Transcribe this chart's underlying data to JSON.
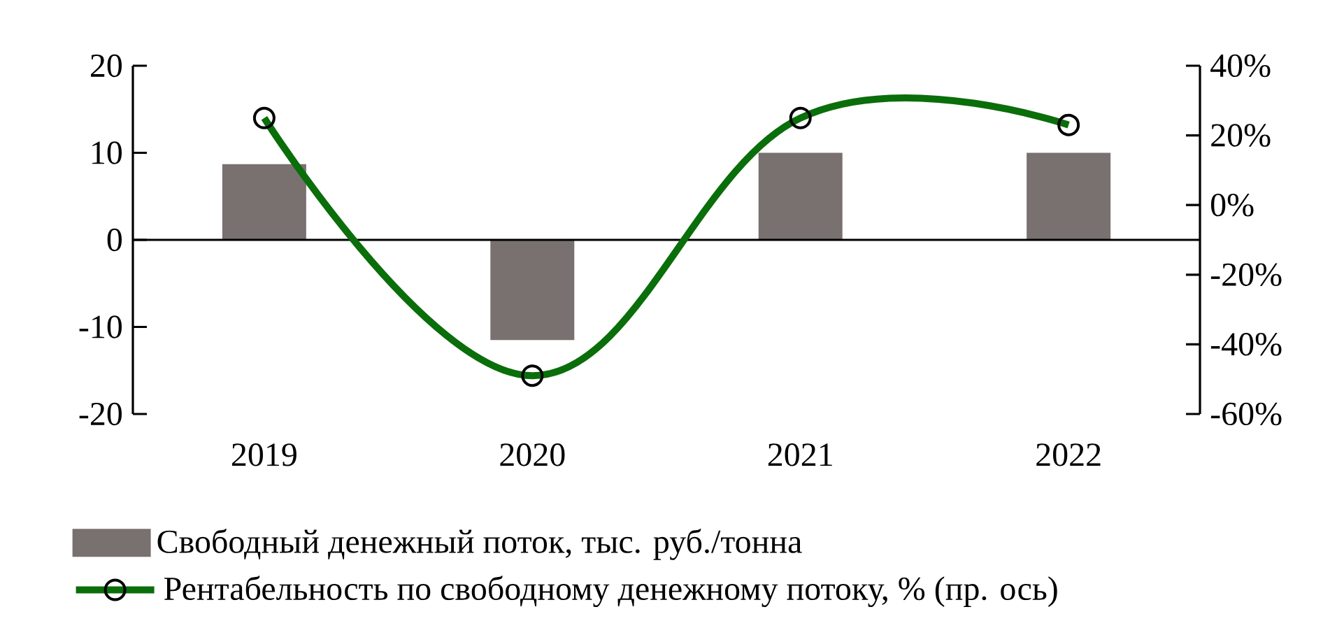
{
  "chart_data": {
    "type": "bar",
    "categories": [
      "2019",
      "2020",
      "2021",
      "2022"
    ],
    "series": [
      {
        "name": "Свободный  денежный  поток,  тыс. руб./тонна",
        "color": "#787170",
        "values": [
          8.7,
          -11.5,
          10,
          10
        ]
      },
      {
        "name": "Рентабельность  по свободному денежному  потоку, % (пр. ось)",
        "type": "line",
        "axis": "y2",
        "color": "#0a6e0a",
        "values": [
          25,
          -49,
          25,
          23
        ],
        "marker": "circle",
        "line_style": "solid"
      }
    ],
    "ylim": [
      -20,
      20
    ],
    "yticks": [
      -20,
      -10,
      0,
      10,
      20
    ],
    "y2lim": [
      -60,
      40
    ],
    "y2ticks": [
      {
        "value": -60,
        "label": "-60%"
      },
      {
        "value": -40,
        "label": "-40%"
      },
      {
        "value": -20,
        "label": "-20%"
      },
      {
        "value": 0,
        "label": "0%"
      },
      {
        "value": 20,
        "label": "20%"
      },
      {
        "value": 40,
        "label": "40%"
      }
    ],
    "legend": "bottom"
  }
}
